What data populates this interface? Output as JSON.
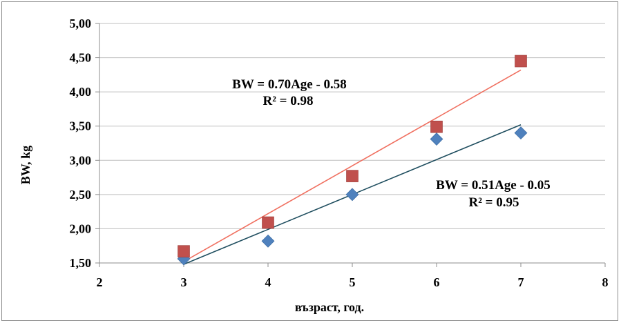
{
  "chart_data": {
    "type": "scatter",
    "title": "",
    "xlabel": "възраст, год.",
    "ylabel": "BW, kg",
    "xlim": [
      2,
      8
    ],
    "ylim": [
      1.5,
      5.0
    ],
    "x_ticks": [
      "2",
      "3",
      "4",
      "5",
      "6",
      "7",
      "8"
    ],
    "y_ticks": [
      "1,50",
      "2,00",
      "2,50",
      "3,00",
      "3,50",
      "4,00",
      "4,50",
      "5,00"
    ],
    "grid": "horizontal",
    "series": [
      {
        "marker": "diamond",
        "color": "#4F81BD",
        "trendline_color": "#1F4E5F",
        "x": [
          3,
          4,
          5,
          6,
          7
        ],
        "y": [
          1.56,
          1.82,
          2.5,
          3.31,
          3.4
        ],
        "trendline": {
          "slope": 0.51,
          "intercept": -0.05
        },
        "equation": "BW = 0.51Age - 0.05",
        "r2": "R² = 0.95"
      },
      {
        "marker": "square",
        "color": "#C0504D",
        "trendline_color": "#F07060",
        "x": [
          3,
          4,
          5,
          6,
          7
        ],
        "y": [
          1.67,
          2.09,
          2.77,
          3.49,
          4.45
        ],
        "trendline": {
          "slope": 0.7,
          "intercept": -0.58
        },
        "equation": "BW = 0.70Age - 0.58",
        "r2": "R² = 0.98"
      }
    ]
  }
}
